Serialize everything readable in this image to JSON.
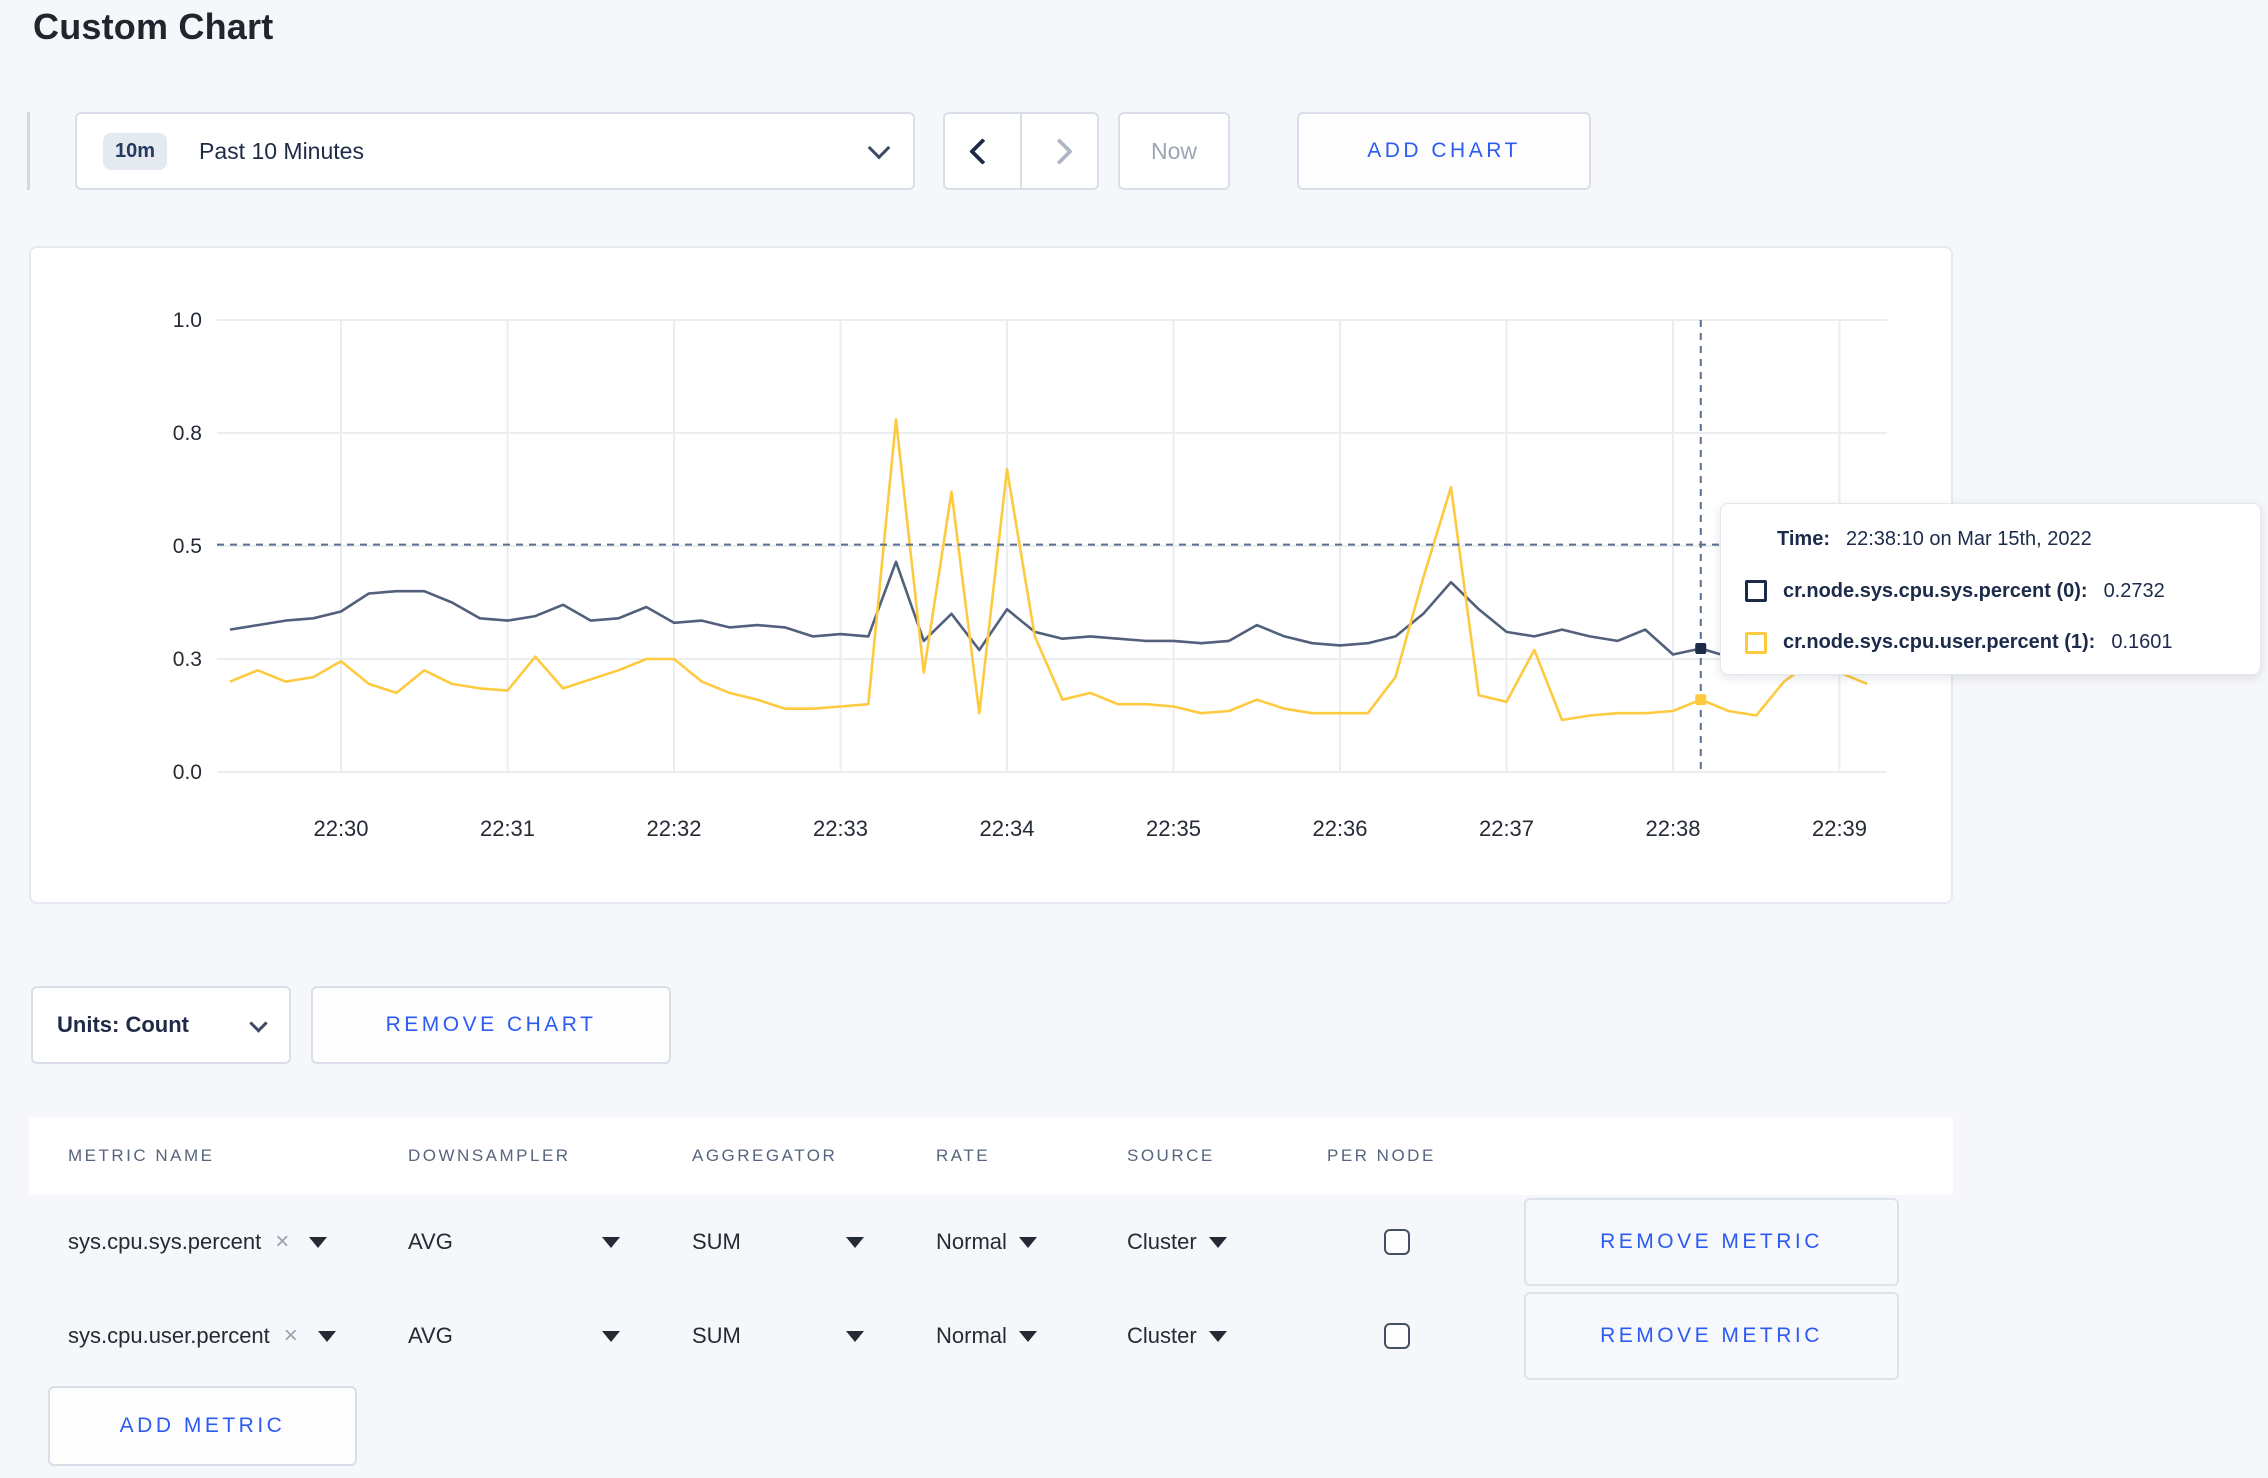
{
  "page": {
    "title": "Custom Chart"
  },
  "toolbar": {
    "time_window_badge": "10m",
    "time_window_label": "Past 10 Minutes",
    "now_label": "Now",
    "add_chart_label": "ADD CHART"
  },
  "chart_data": {
    "type": "line",
    "title": "",
    "xlabel": "",
    "ylabel": "",
    "ylim": [
      0,
      1
    ],
    "grid": true,
    "x_ticks": [
      "22:30",
      "22:31",
      "22:32",
      "22:33",
      "22:34",
      "22:35",
      "22:36",
      "22:37",
      "22:38",
      "22:39"
    ],
    "y_ticks": [
      {
        "value": 0,
        "label": "0.0"
      },
      {
        "value": 0.25,
        "label": "0.3"
      },
      {
        "value": 0.5,
        "label": "0.5"
      },
      {
        "value": 0.75,
        "label": "0.8"
      },
      {
        "value": 1,
        "label": "1.0"
      }
    ],
    "start_time": "22:29:20",
    "interval_seconds": 10,
    "series": [
      {
        "name": "cr.node.sys.cpu.sys.percent",
        "color": "#52607c",
        "dot_color": "#1c2b4a",
        "values": [
          0.315,
          0.325,
          0.335,
          0.34,
          0.355,
          0.395,
          0.4,
          0.4,
          0.375,
          0.34,
          0.335,
          0.345,
          0.37,
          0.335,
          0.34,
          0.365,
          0.33,
          0.335,
          0.32,
          0.325,
          0.32,
          0.3,
          0.305,
          0.3,
          0.465,
          0.29,
          0.35,
          0.27,
          0.36,
          0.31,
          0.295,
          0.3,
          0.295,
          0.29,
          0.29,
          0.285,
          0.29,
          0.325,
          0.3,
          0.285,
          0.28,
          0.285,
          0.3,
          0.35,
          0.42,
          0.36,
          0.31,
          0.3,
          0.315,
          0.3,
          0.29,
          0.315,
          0.26,
          0.2732,
          0.255,
          0.28,
          0.29,
          0.285,
          0.29,
          0.295
        ]
      },
      {
        "name": "cr.node.sys.cpu.user.percent",
        "color": "#fdca40",
        "dot_color": "#fdca40",
        "values": [
          0.2,
          0.225,
          0.2,
          0.21,
          0.245,
          0.195,
          0.175,
          0.225,
          0.195,
          0.185,
          0.18,
          0.255,
          0.185,
          0.205,
          0.225,
          0.25,
          0.25,
          0.2,
          0.175,
          0.16,
          0.14,
          0.14,
          0.145,
          0.15,
          0.78,
          0.22,
          0.62,
          0.13,
          0.67,
          0.3,
          0.16,
          0.175,
          0.15,
          0.15,
          0.145,
          0.13,
          0.135,
          0.16,
          0.14,
          0.13,
          0.13,
          0.13,
          0.21,
          0.43,
          0.63,
          0.17,
          0.155,
          0.27,
          0.115,
          0.125,
          0.13,
          0.13,
          0.135,
          0.1601,
          0.135,
          0.125,
          0.2,
          0.245,
          0.22,
          0.195
        ]
      }
    ],
    "crosshair": {
      "time": "22:38:10",
      "hline_value": 0.503,
      "series_values": [
        0.2732,
        0.1601
      ]
    }
  },
  "tooltip": {
    "time_label": "Time:",
    "time_value": "22:38:10 on Mar 15th, 2022",
    "rows": [
      {
        "name": "cr.node.sys.cpu.sys.percent (0):",
        "value": "0.2732",
        "color": "#1c2b4a"
      },
      {
        "name": "cr.node.sys.cpu.user.percent (1):",
        "value": "0.1601",
        "color": "#fdca40"
      }
    ]
  },
  "units_bar": {
    "units_label": "Units: Count",
    "remove_chart_label": "REMOVE CHART"
  },
  "metrics_table": {
    "headers": [
      "METRIC NAME",
      "DOWNSAMPLER",
      "AGGREGATOR",
      "RATE",
      "SOURCE",
      "PER NODE"
    ],
    "rows": [
      {
        "metric": "sys.cpu.sys.percent",
        "downsampler": "AVG",
        "aggregator": "SUM",
        "rate": "Normal",
        "source": "Cluster",
        "per_node_checked": false,
        "action": "REMOVE METRIC"
      },
      {
        "metric": "sys.cpu.user.percent",
        "downsampler": "AVG",
        "aggregator": "SUM",
        "rate": "Normal",
        "source": "Cluster",
        "per_node_checked": false,
        "action": "REMOVE METRIC"
      }
    ],
    "add_metric_label": "ADD METRIC"
  }
}
